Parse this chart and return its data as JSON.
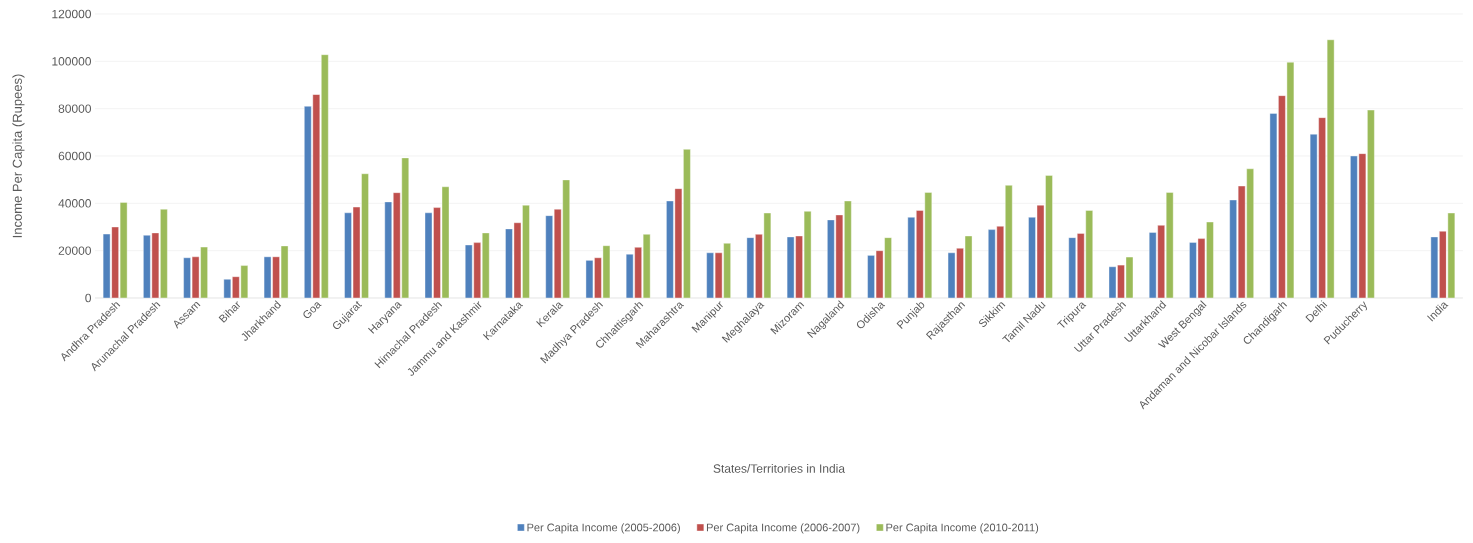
{
  "chart_data": {
    "type": "bar",
    "xlabel": "States/Territories in India",
    "ylabel": "Income Per Capita  (Rupees)",
    "categories": [
      "Andhra Pradesh",
      "Arunachal Pradesh",
      "Assam",
      "Bihar",
      "Jharkhand",
      "Goa",
      "Gujarat",
      "Haryana",
      "Himachal Pradesh",
      "Jammu and Kashmir",
      "Karnataka",
      "Kerala",
      "Madhya Pradesh",
      "Chhattisgarh",
      "Maharashtra",
      "Manipur",
      "Meghalaya",
      "Mizoram",
      "Nagaland",
      "Odisha",
      "Punjab",
      "Rajasthan",
      "Sikkim",
      "Tamil Nadu",
      "Tripura",
      "Uttar Pradesh",
      "Uttarkhand",
      "West Bengal",
      "Andaman and Nicobar Islands",
      "Chandigarh",
      "Delhi",
      "Puducherry",
      null,
      "India"
    ],
    "series": [
      {
        "name": "Per Capita Income (2005-2006)",
        "color": "#4f81bd",
        "values": [
          27000,
          26500,
          17000,
          7900,
          17400,
          81000,
          36000,
          40600,
          36000,
          22400,
          29200,
          34800,
          15900,
          18500,
          41000,
          19100,
          25500,
          25800,
          33000,
          18000,
          34100,
          19100,
          28900,
          34100,
          25500,
          13200,
          27700,
          23500,
          41400,
          78000,
          69200,
          60000,
          null,
          25800
        ]
      },
      {
        "name": "Per Capita Income (2006-2007)",
        "color": "#c0504d",
        "values": [
          30000,
          27500,
          17400,
          9000,
          17400,
          86000,
          38400,
          44500,
          38200,
          23400,
          31800,
          37500,
          17000,
          21400,
          46200,
          19100,
          26900,
          26200,
          35100,
          20000,
          37000,
          21000,
          30300,
          39200,
          27300,
          13900,
          30700,
          25100,
          47300,
          85500,
          76200,
          61000,
          null,
          28200
        ]
      },
      {
        "name": "Per Capita Income (2010-2011)",
        "color": "#9bbb59",
        "values": [
          40400,
          37500,
          21500,
          13700,
          22000,
          102800,
          52500,
          59200,
          47000,
          27500,
          39200,
          49900,
          22100,
          26900,
          62800,
          23100,
          35900,
          36600,
          41000,
          25500,
          44600,
          26200,
          47600,
          51800,
          37000,
          17300,
          44600,
          32100,
          54600,
          99600,
          109100,
          79400,
          null,
          35900
        ]
      }
    ],
    "ylim": [
      0,
      120000
    ],
    "yticks": [
      0,
      20000,
      40000,
      60000,
      80000,
      100000,
      120000
    ],
    "grid": "y",
    "legend": "bottom"
  }
}
